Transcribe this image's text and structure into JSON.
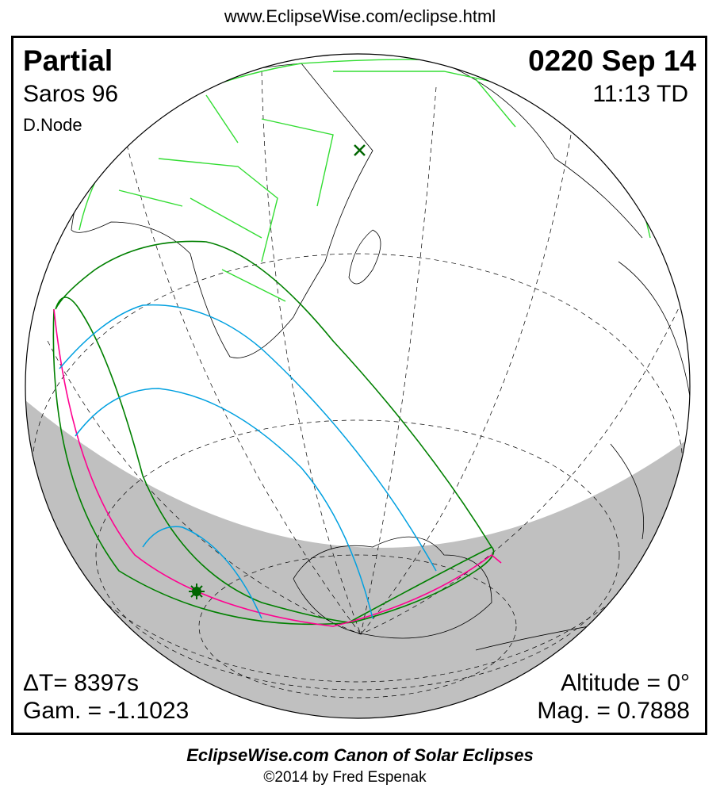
{
  "header_url": "www.EclipseWise.com/eclipse.html",
  "eclipse": {
    "type": "Partial",
    "saros": "Saros  96",
    "node": "D.Node",
    "date": "0220 Sep 14",
    "time": "11:13 TD",
    "delta_t": "ΔT=   8397s",
    "gamma": "Gam. = -1.1023",
    "altitude": "Altitude =  0°",
    "magnitude": "Mag. = 0.7888"
  },
  "footer": {
    "title": "EclipseWise.com Canon of Solar Eclipses",
    "copyright": "©2014 by Fred Espenak"
  },
  "colors": {
    "penumbral_limits": "#008000",
    "magenta_limit": "#ff0090",
    "cyan_curves": "#00a0e0",
    "borders": "#33dd33",
    "night": "#c0c0c0"
  }
}
